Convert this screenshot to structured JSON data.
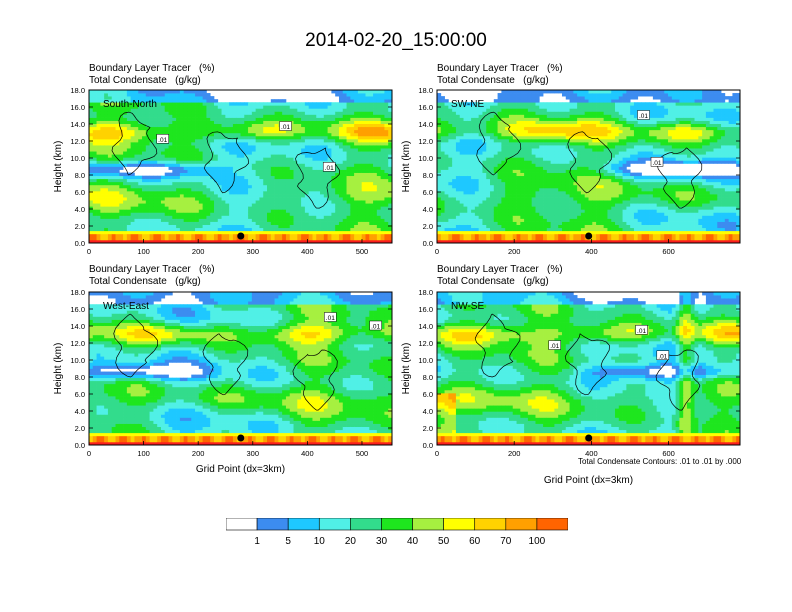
{
  "title": "2014-02-20_15:00:00",
  "footnote": "Total Condensate Contours: .01 to .01 by .000",
  "colors": {
    "levels": [
      "#ffffff",
      "#3c8cf0",
      "#1ec8ff",
      "#50f0e6",
      "#32dc8c",
      "#1ee61e",
      "#a6f040",
      "#ffff00",
      "#ffd200",
      "#ffa000",
      "#ff6400",
      "#fa1e1e"
    ],
    "level_labels": [
      "1",
      "5",
      "10",
      "20",
      "30",
      "40",
      "50",
      "60",
      "70",
      "100"
    ]
  },
  "chart_data": [
    {
      "type": "heatmap",
      "line1": "Boundary Layer Tracer   (%)",
      "line2": "Total Condensate   (g/kg)",
      "section": "South-North",
      "ylabel": "Height (km)",
      "xlabel": "",
      "yticks": [
        "0.0",
        "2.0",
        "4.0",
        "6.0",
        "8.0",
        "10.0",
        "12.0",
        "14.0",
        "16.0",
        "18.0"
      ],
      "xticks": [
        "0",
        "100",
        "200",
        "300",
        "400",
        "500"
      ],
      "xlim": [
        0,
        555
      ],
      "ylim": [
        0,
        18
      ],
      "marker_x": 278,
      "contour_labels": [
        {
          "text": ".01",
          "x": 135,
          "y": 12.2
        },
        {
          "text": ".01",
          "x": 360,
          "y": 13.7
        },
        {
          "text": ".01",
          "x": 440,
          "y": 8.9
        }
      ]
    },
    {
      "type": "heatmap",
      "line1": "Boundary Layer Tracer   (%)",
      "line2": "Total Condensate   (g/kg)",
      "section": "SW-NE",
      "ylabel": "Height (km)",
      "xlabel": "",
      "yticks": [
        "0.0",
        "2.0",
        "4.0",
        "6.0",
        "8.0",
        "10.0",
        "12.0",
        "14.0",
        "16.0",
        "18.0"
      ],
      "xticks": [
        "0",
        "200",
        "400",
        "600"
      ],
      "xlim": [
        0,
        785
      ],
      "ylim": [
        0,
        18
      ],
      "marker_x": 393,
      "contour_labels": [
        {
          "text": ".01",
          "x": 535,
          "y": 15.0
        },
        {
          "text": ".01",
          "x": 570,
          "y": 9.5
        }
      ]
    },
    {
      "type": "heatmap",
      "line1": "Boundary Layer Tracer   (%)",
      "line2": "Total Condensate   (g/kg)",
      "section": "West-East",
      "ylabel": "Height (km)",
      "xlabel": "Grid Point (dx=3km)",
      "yticks": [
        "0.0",
        "2.0",
        "4.0",
        "6.0",
        "8.0",
        "10.0",
        "12.0",
        "14.0",
        "16.0",
        "18.0"
      ],
      "xticks": [
        "0",
        "100",
        "200",
        "300",
        "400",
        "500"
      ],
      "xlim": [
        0,
        555
      ],
      "ylim": [
        0,
        18
      ],
      "marker_x": 278,
      "contour_labels": [
        {
          "text": ".01",
          "x": 442,
          "y": 15.0
        },
        {
          "text": ".01",
          "x": 525,
          "y": 14.0
        }
      ]
    },
    {
      "type": "heatmap",
      "line1": "Boundary Layer Tracer   (%)",
      "line2": "Total Condensate   (g/kg)",
      "section": "NW-SE",
      "ylabel": "Height (km)",
      "xlabel": "Grid Point (dx=3km)",
      "yticks": [
        "0.0",
        "2.0",
        "4.0",
        "6.0",
        "8.0",
        "10.0",
        "12.0",
        "14.0",
        "16.0",
        "18.0"
      ],
      "xticks": [
        "0",
        "200",
        "400",
        "600"
      ],
      "xlim": [
        0,
        785
      ],
      "ylim": [
        0,
        18
      ],
      "marker_x": 393,
      "contour_labels": [
        {
          "text": ".01",
          "x": 305,
          "y": 11.7
        },
        {
          "text": ".01",
          "x": 530,
          "y": 13.5
        },
        {
          "text": ".01",
          "x": 585,
          "y": 10.5
        }
      ]
    }
  ]
}
